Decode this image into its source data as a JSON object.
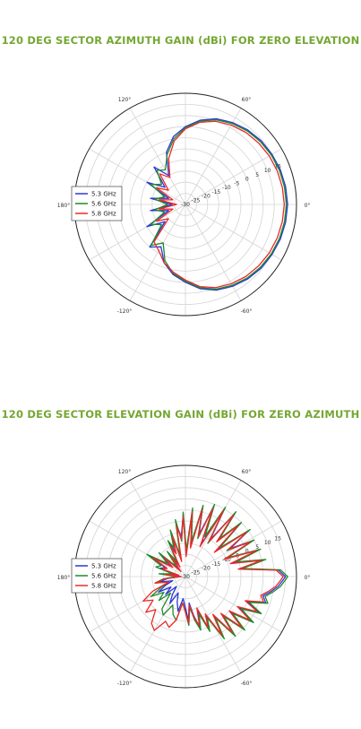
{
  "colors": {
    "title": "#74a732",
    "series_5_3": "#2a38d4",
    "series_5_6": "#1f8a2a",
    "series_5_8": "#ea2a2a"
  },
  "chart_data": [
    {
      "type": "polar",
      "title": "120 DEG SECTOR AZIMUTH GAIN (dBi) FOR ZERO ELEVATION",
      "angle_ticks": [
        "0°",
        "60°",
        "120°",
        "180°",
        "-120°",
        "-60°"
      ],
      "angle_tick_values": [
        0,
        60,
        120,
        180,
        -120,
        -60
      ],
      "radial_ticks": [
        "-30",
        "-25",
        "-20",
        "-15",
        "-10",
        "-5",
        "0",
        "5",
        "10",
        "15"
      ],
      "radial_tick_values": [
        -30,
        -25,
        -20,
        -15,
        -10,
        -5,
        0,
        5,
        10,
        15
      ],
      "rlim": [
        -30,
        20
      ],
      "grid": true,
      "legend": "left",
      "series": [
        {
          "name": "5.3 GHz",
          "theta": [
            0,
            10,
            20,
            30,
            40,
            50,
            60,
            70,
            80,
            90,
            100,
            110,
            120,
            130,
            140,
            150,
            160,
            170,
            180,
            190,
            200,
            210,
            220,
            230,
            240,
            250,
            260,
            270,
            280,
            290,
            300,
            310,
            320,
            330,
            340,
            350
          ],
          "r": [
            16,
            15.8,
            15.5,
            15,
            14.5,
            13.7,
            12.5,
            11,
            8.5,
            5,
            1,
            -5,
            -15,
            -8,
            -18,
            -10,
            -22,
            -14,
            -24,
            -14,
            -22,
            -10,
            -18,
            -5,
            -8,
            -2,
            2,
            5,
            8.5,
            11,
            12.5,
            13.7,
            14.5,
            15,
            15.5,
            15.8
          ]
        },
        {
          "name": "5.6 GHz",
          "theta": [
            0,
            10,
            20,
            30,
            40,
            50,
            60,
            70,
            80,
            90,
            100,
            110,
            120,
            130,
            140,
            150,
            160,
            170,
            180,
            190,
            200,
            210,
            220,
            230,
            240,
            250,
            260,
            270,
            280,
            290,
            300,
            310,
            320,
            330,
            340,
            350
          ],
          "r": [
            15.5,
            15.3,
            15,
            14.6,
            14,
            13.2,
            12,
            10.5,
            8,
            4.5,
            0,
            -6,
            -12,
            -10,
            -16,
            -12,
            -20,
            -16,
            -22,
            -16,
            -20,
            -12,
            -16,
            -6,
            -10,
            -3,
            1.5,
            4.5,
            8,
            10.5,
            12,
            13.2,
            14,
            14.6,
            15,
            15.3
          ]
        },
        {
          "name": "5.8 GHz",
          "theta": [
            0,
            10,
            20,
            30,
            40,
            50,
            60,
            70,
            80,
            90,
            100,
            110,
            120,
            130,
            140,
            150,
            160,
            170,
            180,
            190,
            200,
            210,
            220,
            230,
            240,
            250,
            260,
            270,
            280,
            290,
            300,
            310,
            320,
            330,
            340,
            350
          ],
          "r": [
            14.5,
            14.3,
            14,
            13.6,
            13,
            12.3,
            11.2,
            9.8,
            7.5,
            4,
            -1,
            -8,
            -16,
            -12,
            -20,
            -15,
            -24,
            -18,
            -26,
            -18,
            -24,
            -15,
            -20,
            -8,
            -6,
            -2,
            1,
            4,
            7.5,
            9.8,
            11.2,
            12.3,
            13,
            13.6,
            14,
            14.3
          ]
        }
      ]
    },
    {
      "type": "polar",
      "title": "120 DEG SECTOR ELEVATION GAIN (dBi) FOR ZERO AZIMUTH",
      "angle_ticks": [
        "0°",
        "60°",
        "120°",
        "180°",
        "-120°",
        "-60°"
      ],
      "angle_tick_values": [
        0,
        60,
        120,
        180,
        -120,
        -60
      ],
      "radial_ticks": [
        "-30",
        "-25",
        "-20",
        "-15",
        "-10",
        "-5",
        "0",
        "5",
        "10",
        "15"
      ],
      "radial_tick_values": [
        -30,
        -25,
        -20,
        -15,
        -10,
        -5,
        0,
        5,
        10,
        15
      ],
      "rlim": [
        -30,
        20
      ],
      "grid": true,
      "legend": "left",
      "series": [
        {
          "name": "5.3 GHz",
          "theta": [
            0,
            4,
            8,
            12,
            16,
            20,
            24,
            28,
            32,
            36,
            40,
            44,
            48,
            52,
            56,
            60,
            64,
            68,
            72,
            76,
            80,
            84,
            88,
            92,
            96,
            100,
            104,
            108,
            112,
            116,
            120,
            126,
            132,
            138,
            144,
            150,
            156,
            162,
            168,
            174,
            180,
            186,
            192,
            198,
            204,
            210,
            216,
            222,
            228,
            234,
            240,
            246,
            252,
            258,
            264,
            270,
            274,
            278,
            282,
            286,
            290,
            294,
            298,
            302,
            306,
            310,
            314,
            318,
            322,
            326,
            330,
            334,
            338,
            342,
            346,
            350,
            354,
            358
          ],
          "r": [
            15,
            12,
            -5,
            6,
            -8,
            5,
            -10,
            4,
            -6,
            5,
            -12,
            4,
            -8,
            6,
            -10,
            5,
            -14,
            4,
            -10,
            2,
            -16,
            0,
            -20,
            -2,
            -12,
            -6,
            -22,
            -10,
            -18,
            -14,
            -24,
            -18,
            -26,
            -16,
            -22,
            -12,
            -20,
            -18,
            -26,
            -20,
            -28,
            -22,
            -18,
            -24,
            -20,
            -16,
            -22,
            -18,
            -24,
            -20,
            -16,
            -22,
            -18,
            -14,
            -20,
            -16,
            -10,
            -18,
            -12,
            -6,
            -14,
            -4,
            -10,
            2,
            -8,
            4,
            -6,
            5,
            -4,
            6,
            -2,
            7,
            0,
            8,
            6,
            9,
            12,
            14
          ]
        },
        {
          "name": "5.6 GHz",
          "theta": [
            0,
            4,
            8,
            12,
            16,
            20,
            24,
            28,
            32,
            36,
            40,
            44,
            48,
            52,
            56,
            60,
            64,
            68,
            72,
            76,
            80,
            84,
            88,
            92,
            96,
            100,
            104,
            108,
            112,
            116,
            120,
            126,
            132,
            138,
            144,
            150,
            156,
            162,
            168,
            174,
            180,
            186,
            192,
            198,
            204,
            210,
            216,
            222,
            228,
            234,
            240,
            246,
            252,
            258,
            264,
            270,
            274,
            278,
            282,
            286,
            290,
            294,
            298,
            302,
            306,
            310,
            314,
            318,
            322,
            326,
            330,
            334,
            338,
            342,
            346,
            350,
            354,
            358
          ],
          "r": [
            16,
            13,
            -4,
            7,
            -6,
            6,
            -9,
            5,
            -8,
            6,
            -10,
            5,
            -7,
            7,
            -12,
            6,
            -10,
            5,
            -12,
            3,
            -14,
            1,
            -18,
            -1,
            -14,
            -4,
            -20,
            -8,
            -16,
            -12,
            -22,
            -16,
            -24,
            -14,
            -20,
            -10,
            -18,
            -16,
            -24,
            -18,
            -26,
            -20,
            -16,
            -22,
            -18,
            -12,
            -18,
            -14,
            -20,
            -12,
            -10,
            -16,
            -12,
            -10,
            -18,
            -14,
            -8,
            -16,
            -10,
            -5,
            -12,
            -3,
            -9,
            3,
            -7,
            5,
            -5,
            6,
            -3,
            7,
            -1,
            8,
            1,
            9,
            7,
            10,
            13,
            15
          ]
        },
        {
          "name": "5.8 GHz",
          "theta": [
            0,
            4,
            8,
            12,
            16,
            20,
            24,
            28,
            32,
            36,
            40,
            44,
            48,
            52,
            56,
            60,
            64,
            68,
            72,
            76,
            80,
            84,
            88,
            92,
            96,
            100,
            104,
            108,
            112,
            116,
            120,
            126,
            132,
            138,
            144,
            150,
            156,
            162,
            168,
            174,
            180,
            186,
            192,
            198,
            204,
            210,
            216,
            222,
            228,
            234,
            240,
            246,
            252,
            258,
            264,
            270,
            274,
            278,
            282,
            286,
            290,
            294,
            298,
            302,
            306,
            310,
            314,
            318,
            322,
            326,
            330,
            334,
            338,
            342,
            346,
            350,
            354,
            358
          ],
          "r": [
            14,
            11,
            -6,
            5,
            -9,
            4,
            -11,
            3,
            -7,
            4,
            -13,
            3,
            -9,
            5,
            -11,
            4,
            -15,
            3,
            -11,
            1,
            -17,
            -1,
            -21,
            -3,
            -13,
            -7,
            -23,
            -11,
            -19,
            -15,
            -25,
            -19,
            -27,
            -17,
            -23,
            -13,
            -21,
            -19,
            -27,
            -21,
            -28,
            -21,
            -16,
            -22,
            -14,
            -8,
            -12,
            -6,
            -10,
            -4,
            -2,
            -8,
            -6,
            -10,
            -18,
            -14,
            -9,
            -17,
            -11,
            -7,
            -15,
            -5,
            -11,
            1,
            -9,
            3,
            -7,
            4,
            -5,
            5,
            -3,
            6,
            -1,
            7,
            5,
            8,
            11,
            13
          ]
        }
      ]
    }
  ]
}
